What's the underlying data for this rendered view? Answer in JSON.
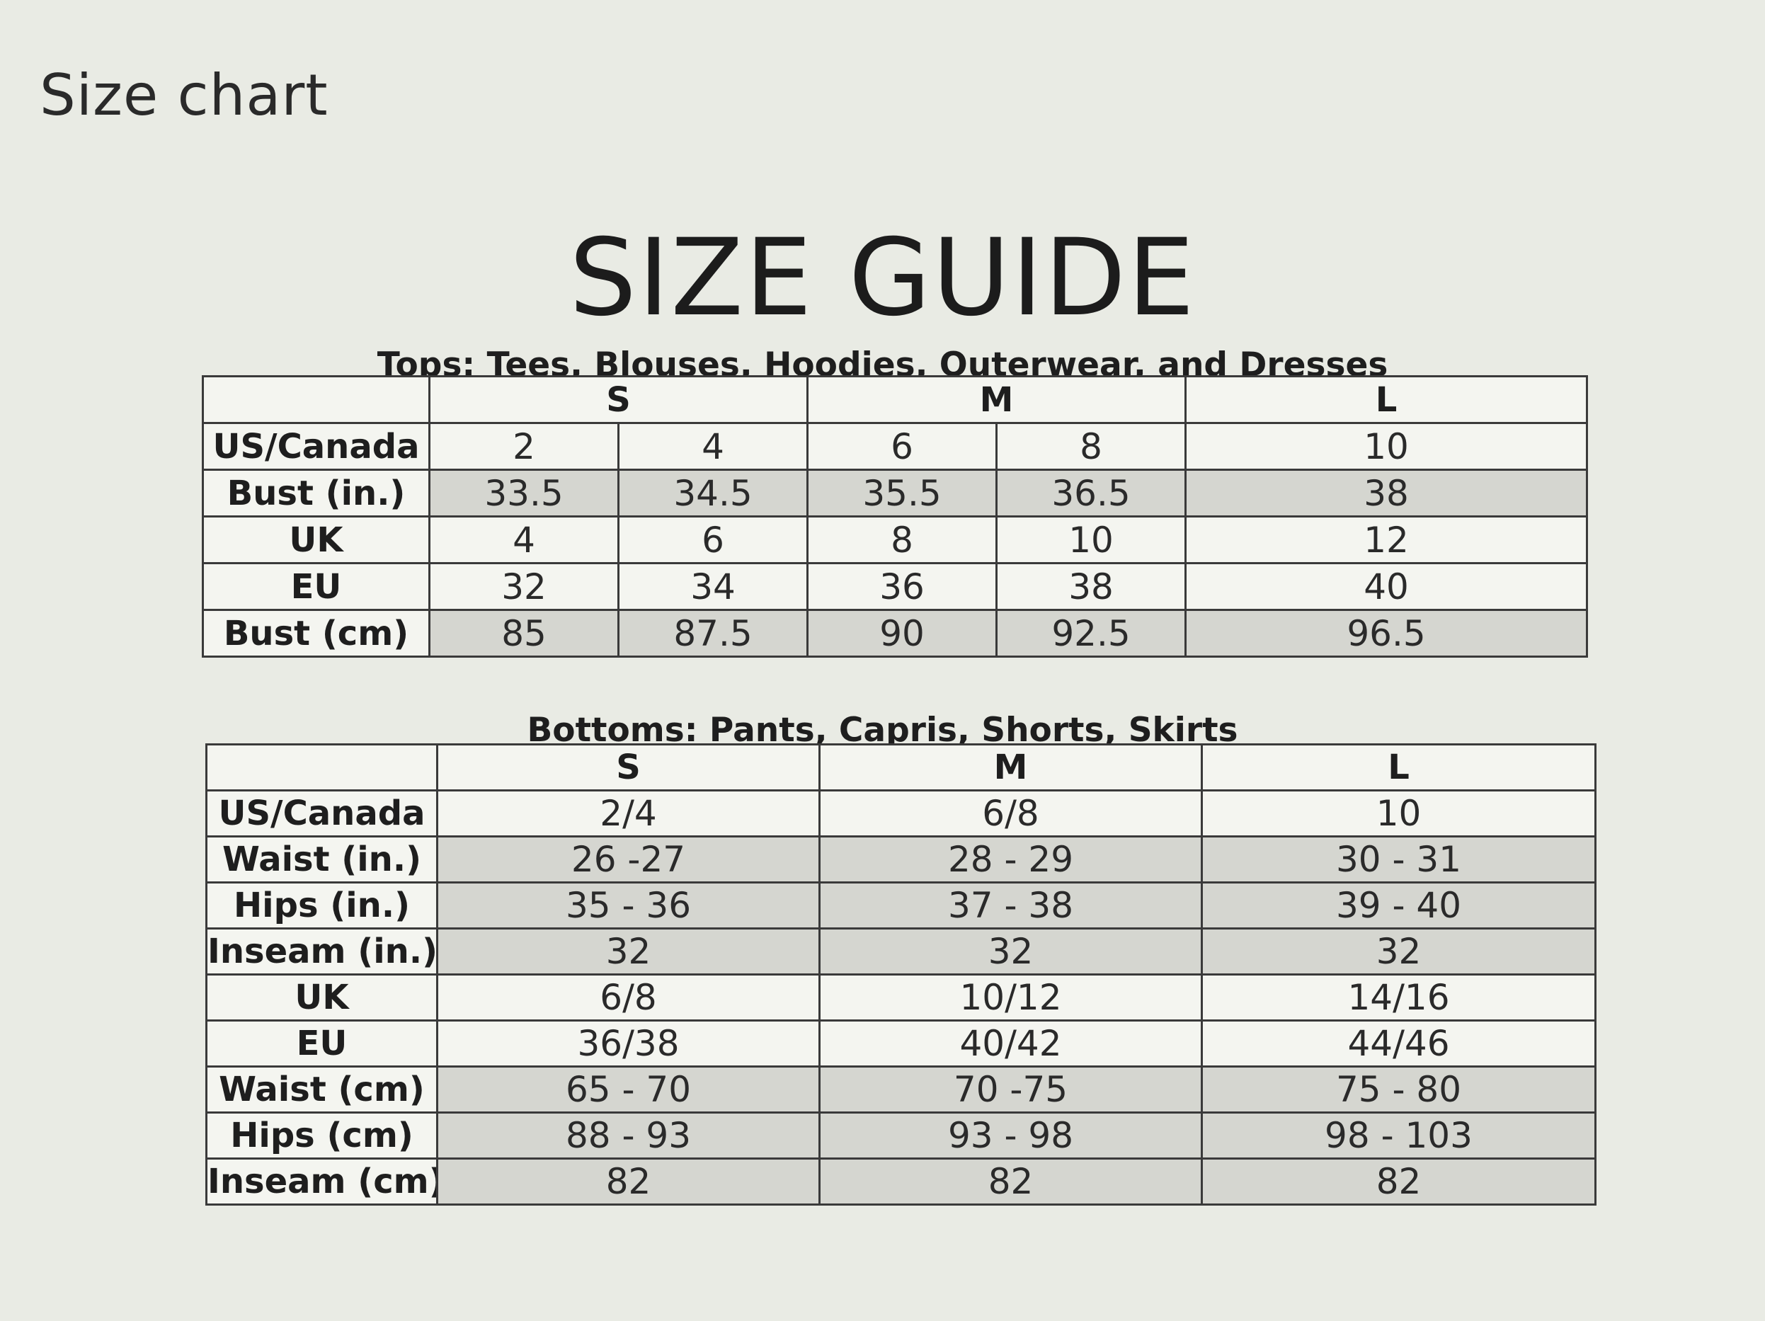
{
  "header": {
    "title": "Size chart"
  },
  "guide": {
    "title": "SIZE GUIDE"
  },
  "tops": {
    "caption": "Tops: Tees, Blouses, Hoodies, Outerwear, and Dresses",
    "sizes": [
      "S",
      "M",
      "L"
    ],
    "rows": [
      {
        "label": "US/Canada",
        "values": [
          "2",
          "4",
          "6",
          "8",
          "10"
        ],
        "shaded": false
      },
      {
        "label": "Bust (in.)",
        "values": [
          "33.5",
          "34.5",
          "35.5",
          "36.5",
          "38"
        ],
        "shaded": true
      },
      {
        "label": "UK",
        "values": [
          "4",
          "6",
          "8",
          "10",
          "12"
        ],
        "shaded": false
      },
      {
        "label": "EU",
        "values": [
          "32",
          "34",
          "36",
          "38",
          "40"
        ],
        "shaded": false
      },
      {
        "label": "Bust (cm)",
        "values": [
          "85",
          "87.5",
          "90",
          "92.5",
          "96.5"
        ],
        "shaded": true
      }
    ]
  },
  "bottoms": {
    "caption": "Bottoms: Pants, Capris, Shorts, Skirts",
    "sizes": [
      "S",
      "M",
      "L"
    ],
    "rows": [
      {
        "label": "US/Canada",
        "values": [
          "2/4",
          "6/8",
          "10"
        ],
        "shaded": false
      },
      {
        "label": "Waist (in.)",
        "values": [
          "26 -27",
          "28 - 29",
          "30 - 31"
        ],
        "shaded": true
      },
      {
        "label": "Hips (in.)",
        "values": [
          "35 - 36",
          "37 - 38",
          "39 - 40"
        ],
        "shaded": true
      },
      {
        "label": "Inseam (in.)",
        "values": [
          "32",
          "32",
          "32"
        ],
        "shaded": true
      },
      {
        "label": "UK",
        "values": [
          "6/8",
          "10/12",
          "14/16"
        ],
        "shaded": false
      },
      {
        "label": "EU",
        "values": [
          "36/38",
          "40/42",
          "44/46"
        ],
        "shaded": false
      },
      {
        "label": "Waist (cm)",
        "values": [
          "65 - 70",
          "70 -75",
          "75 - 80"
        ],
        "shaded": true
      },
      {
        "label": "Hips (cm)",
        "values": [
          "88 - 93",
          "93 - 98",
          "98 - 103"
        ],
        "shaded": true
      },
      {
        "label": "Inseam (cm)",
        "values": [
          "82",
          "82",
          "82"
        ],
        "shaded": true
      }
    ]
  }
}
